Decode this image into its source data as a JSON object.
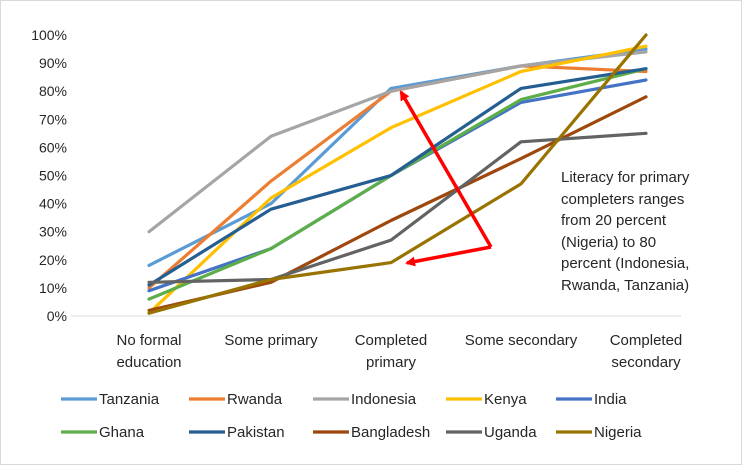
{
  "chart_data": {
    "type": "line",
    "categories": [
      [
        "No formal",
        "education"
      ],
      [
        "Some primary"
      ],
      [
        "Completed",
        "primary"
      ],
      [
        "Some secondary"
      ],
      [
        "Completed",
        "secondary"
      ]
    ],
    "ylim": [
      0,
      100
    ],
    "yticks": [
      0,
      10,
      20,
      30,
      40,
      50,
      60,
      70,
      80,
      90,
      100
    ],
    "ytick_labels": [
      "0%",
      "10%",
      "20%",
      "30%",
      "40%",
      "50%",
      "60%",
      "70%",
      "80%",
      "90%",
      "100%"
    ],
    "grid": false,
    "legend_position": "bottom",
    "series": [
      {
        "name": "Tanzania",
        "color": "#5b9bd5",
        "values": [
          18,
          40,
          81,
          89,
          95
        ]
      },
      {
        "name": "Rwanda",
        "color": "#ed7d31",
        "values": [
          10,
          48,
          80,
          89,
          87
        ]
      },
      {
        "name": "Indonesia",
        "color": "#a5a5a5",
        "values": [
          30,
          64,
          80,
          89,
          94
        ]
      },
      {
        "name": "Kenya",
        "color": "#ffc000",
        "values": [
          1,
          42,
          67,
          87,
          96
        ]
      },
      {
        "name": "India",
        "color": "#4472c4",
        "values": [
          9,
          24,
          50,
          76,
          84
        ]
      },
      {
        "name": "Ghana",
        "color": "#5dae49",
        "values": [
          6,
          24,
          50,
          77,
          88
        ]
      },
      {
        "name": "Pakistan",
        "color": "#255e91",
        "values": [
          11,
          38,
          50,
          81,
          88
        ]
      },
      {
        "name": "Bangladesh",
        "color": "#9e480e",
        "values": [
          2,
          12,
          34,
          56,
          78
        ]
      },
      {
        "name": "Uganda",
        "color": "#636363",
        "values": [
          12,
          13,
          27,
          62,
          65
        ]
      },
      {
        "name": "Nigeria",
        "color": "#997300",
        "values": [
          1,
          13,
          19,
          47,
          100
        ]
      }
    ],
    "annotation": {
      "lines": [
        "Literacy for primary",
        "completers ranges",
        "from 20 percent",
        "(Nigeria) to 80",
        "percent (Indonesia,",
        "Rwanda, Tanzania)"
      ],
      "arrow_color": "#ff0000"
    }
  }
}
